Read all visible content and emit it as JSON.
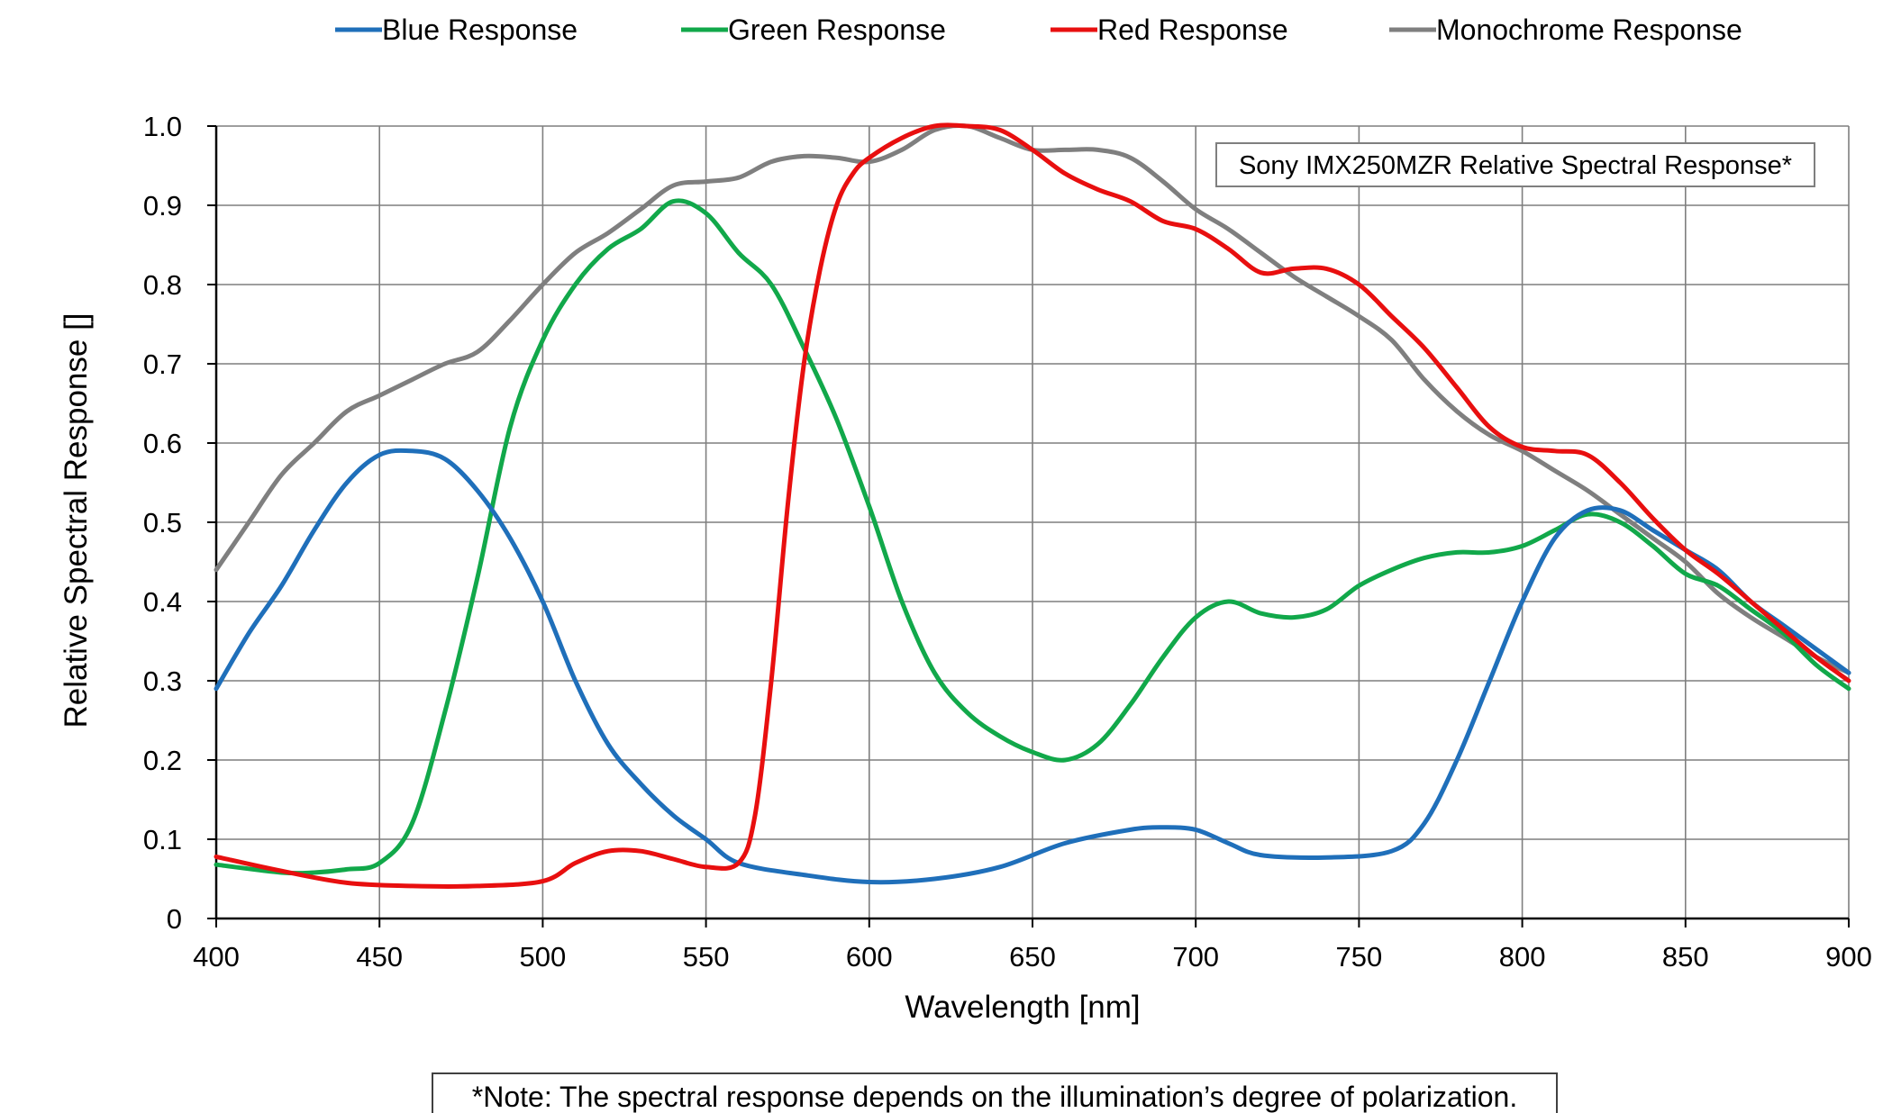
{
  "chart_data": {
    "type": "line",
    "title": "Sony IMX250MZR Relative Spectral Response*",
    "xlabel": "Wavelength [nm]",
    "ylabel": "Relative Spectral Response []",
    "xlim": [
      400,
      900
    ],
    "ylim": [
      0,
      1.0
    ],
    "x_ticks": [
      400,
      450,
      500,
      550,
      600,
      650,
      700,
      750,
      800,
      850,
      900
    ],
    "y_ticks": [
      0,
      0.1,
      0.2,
      0.3,
      0.4,
      0.5,
      0.6,
      0.7,
      0.8,
      0.9,
      1.0
    ],
    "x_tick_labels": [
      "400",
      "450",
      "500",
      "550",
      "600",
      "650",
      "700",
      "750",
      "800",
      "850",
      "900"
    ],
    "y_tick_labels": [
      "0",
      "0.1",
      "0.2",
      "0.3",
      "0.4",
      "0.5",
      "0.6",
      "0.7",
      "0.8",
      "0.9",
      "1.0"
    ],
    "grid": true,
    "legend_position": "top",
    "note": "*Note: The spectral response depends on the illumination’s degree of polarization.",
    "series": [
      {
        "name": "Blue Response",
        "color": "#1f6fba",
        "points": [
          [
            400,
            0.29
          ],
          [
            410,
            0.36
          ],
          [
            420,
            0.42
          ],
          [
            430,
            0.49
          ],
          [
            440,
            0.55
          ],
          [
            450,
            0.585
          ],
          [
            460,
            0.59
          ],
          [
            470,
            0.58
          ],
          [
            480,
            0.54
          ],
          [
            490,
            0.48
          ],
          [
            500,
            0.4
          ],
          [
            510,
            0.3
          ],
          [
            520,
            0.22
          ],
          [
            530,
            0.17
          ],
          [
            540,
            0.13
          ],
          [
            550,
            0.1
          ],
          [
            560,
            0.07
          ],
          [
            580,
            0.055
          ],
          [
            600,
            0.046
          ],
          [
            620,
            0.05
          ],
          [
            640,
            0.065
          ],
          [
            660,
            0.095
          ],
          [
            680,
            0.112
          ],
          [
            690,
            0.115
          ],
          [
            700,
            0.112
          ],
          [
            710,
            0.095
          ],
          [
            720,
            0.08
          ],
          [
            740,
            0.077
          ],
          [
            760,
            0.085
          ],
          [
            770,
            0.12
          ],
          [
            780,
            0.2
          ],
          [
            790,
            0.3
          ],
          [
            800,
            0.4
          ],
          [
            810,
            0.48
          ],
          [
            820,
            0.515
          ],
          [
            830,
            0.515
          ],
          [
            840,
            0.49
          ],
          [
            850,
            0.465
          ],
          [
            860,
            0.44
          ],
          [
            870,
            0.4
          ],
          [
            880,
            0.37
          ],
          [
            890,
            0.34
          ],
          [
            900,
            0.31
          ]
        ]
      },
      {
        "name": "Green Response",
        "color": "#11a84a",
        "points": [
          [
            400,
            0.068
          ],
          [
            420,
            0.058
          ],
          [
            430,
            0.058
          ],
          [
            440,
            0.062
          ],
          [
            450,
            0.07
          ],
          [
            460,
            0.12
          ],
          [
            470,
            0.26
          ],
          [
            480,
            0.43
          ],
          [
            490,
            0.62
          ],
          [
            500,
            0.73
          ],
          [
            510,
            0.8
          ],
          [
            520,
            0.845
          ],
          [
            530,
            0.87
          ],
          [
            540,
            0.905
          ],
          [
            550,
            0.89
          ],
          [
            560,
            0.84
          ],
          [
            570,
            0.8
          ],
          [
            580,
            0.72
          ],
          [
            590,
            0.63
          ],
          [
            600,
            0.52
          ],
          [
            610,
            0.4
          ],
          [
            620,
            0.31
          ],
          [
            630,
            0.26
          ],
          [
            640,
            0.23
          ],
          [
            650,
            0.21
          ],
          [
            660,
            0.2
          ],
          [
            670,
            0.22
          ],
          [
            680,
            0.27
          ],
          [
            690,
            0.33
          ],
          [
            700,
            0.38
          ],
          [
            710,
            0.4
          ],
          [
            720,
            0.385
          ],
          [
            730,
            0.38
          ],
          [
            740,
            0.39
          ],
          [
            750,
            0.42
          ],
          [
            760,
            0.44
          ],
          [
            770,
            0.455
          ],
          [
            780,
            0.462
          ],
          [
            790,
            0.462
          ],
          [
            800,
            0.47
          ],
          [
            810,
            0.49
          ],
          [
            820,
            0.51
          ],
          [
            830,
            0.5
          ],
          [
            840,
            0.47
          ],
          [
            850,
            0.435
          ],
          [
            860,
            0.42
          ],
          [
            870,
            0.39
          ],
          [
            880,
            0.36
          ],
          [
            890,
            0.32
          ],
          [
            900,
            0.29
          ]
        ]
      },
      {
        "name": "Red Response",
        "color": "#e80f0f",
        "points": [
          [
            400,
            0.078
          ],
          [
            420,
            0.06
          ],
          [
            440,
            0.045
          ],
          [
            460,
            0.041
          ],
          [
            480,
            0.041
          ],
          [
            500,
            0.047
          ],
          [
            510,
            0.07
          ],
          [
            520,
            0.085
          ],
          [
            530,
            0.085
          ],
          [
            540,
            0.075
          ],
          [
            550,
            0.065
          ],
          [
            560,
            0.07
          ],
          [
            565,
            0.13
          ],
          [
            570,
            0.3
          ],
          [
            575,
            0.52
          ],
          [
            580,
            0.7
          ],
          [
            585,
            0.82
          ],
          [
            590,
            0.9
          ],
          [
            595,
            0.94
          ],
          [
            600,
            0.96
          ],
          [
            610,
            0.985
          ],
          [
            620,
            1.0
          ],
          [
            630,
            1.0
          ],
          [
            640,
            0.995
          ],
          [
            650,
            0.97
          ],
          [
            660,
            0.94
          ],
          [
            670,
            0.92
          ],
          [
            680,
            0.905
          ],
          [
            690,
            0.88
          ],
          [
            700,
            0.87
          ],
          [
            710,
            0.845
          ],
          [
            720,
            0.815
          ],
          [
            730,
            0.82
          ],
          [
            740,
            0.82
          ],
          [
            750,
            0.8
          ],
          [
            760,
            0.76
          ],
          [
            770,
            0.72
          ],
          [
            780,
            0.67
          ],
          [
            790,
            0.62
          ],
          [
            800,
            0.595
          ],
          [
            810,
            0.59
          ],
          [
            820,
            0.585
          ],
          [
            830,
            0.55
          ],
          [
            840,
            0.505
          ],
          [
            850,
            0.465
          ],
          [
            860,
            0.435
          ],
          [
            870,
            0.4
          ],
          [
            880,
            0.365
          ],
          [
            890,
            0.33
          ],
          [
            900,
            0.3
          ]
        ]
      },
      {
        "name": "Monochrome Response",
        "color": "#7f7f7f",
        "points": [
          [
            400,
            0.44
          ],
          [
            410,
            0.5
          ],
          [
            420,
            0.56
          ],
          [
            430,
            0.6
          ],
          [
            440,
            0.64
          ],
          [
            450,
            0.66
          ],
          [
            460,
            0.68
          ],
          [
            470,
            0.7
          ],
          [
            480,
            0.715
          ],
          [
            490,
            0.755
          ],
          [
            500,
            0.8
          ],
          [
            510,
            0.84
          ],
          [
            520,
            0.865
          ],
          [
            530,
            0.895
          ],
          [
            540,
            0.925
          ],
          [
            550,
            0.93
          ],
          [
            560,
            0.935
          ],
          [
            570,
            0.955
          ],
          [
            580,
            0.962
          ],
          [
            590,
            0.96
          ],
          [
            600,
            0.955
          ],
          [
            610,
            0.97
          ],
          [
            620,
            0.995
          ],
          [
            630,
            1.0
          ],
          [
            640,
            0.985
          ],
          [
            650,
            0.97
          ],
          [
            660,
            0.97
          ],
          [
            670,
            0.97
          ],
          [
            680,
            0.96
          ],
          [
            690,
            0.93
          ],
          [
            700,
            0.895
          ],
          [
            710,
            0.87
          ],
          [
            720,
            0.84
          ],
          [
            730,
            0.81
          ],
          [
            740,
            0.785
          ],
          [
            750,
            0.76
          ],
          [
            760,
            0.73
          ],
          [
            770,
            0.68
          ],
          [
            780,
            0.64
          ],
          [
            790,
            0.61
          ],
          [
            800,
            0.59
          ],
          [
            810,
            0.565
          ],
          [
            820,
            0.54
          ],
          [
            830,
            0.51
          ],
          [
            840,
            0.48
          ],
          [
            850,
            0.45
          ],
          [
            860,
            0.41
          ],
          [
            870,
            0.38
          ],
          [
            880,
            0.355
          ],
          [
            890,
            0.33
          ],
          [
            900,
            0.31
          ]
        ]
      }
    ]
  }
}
